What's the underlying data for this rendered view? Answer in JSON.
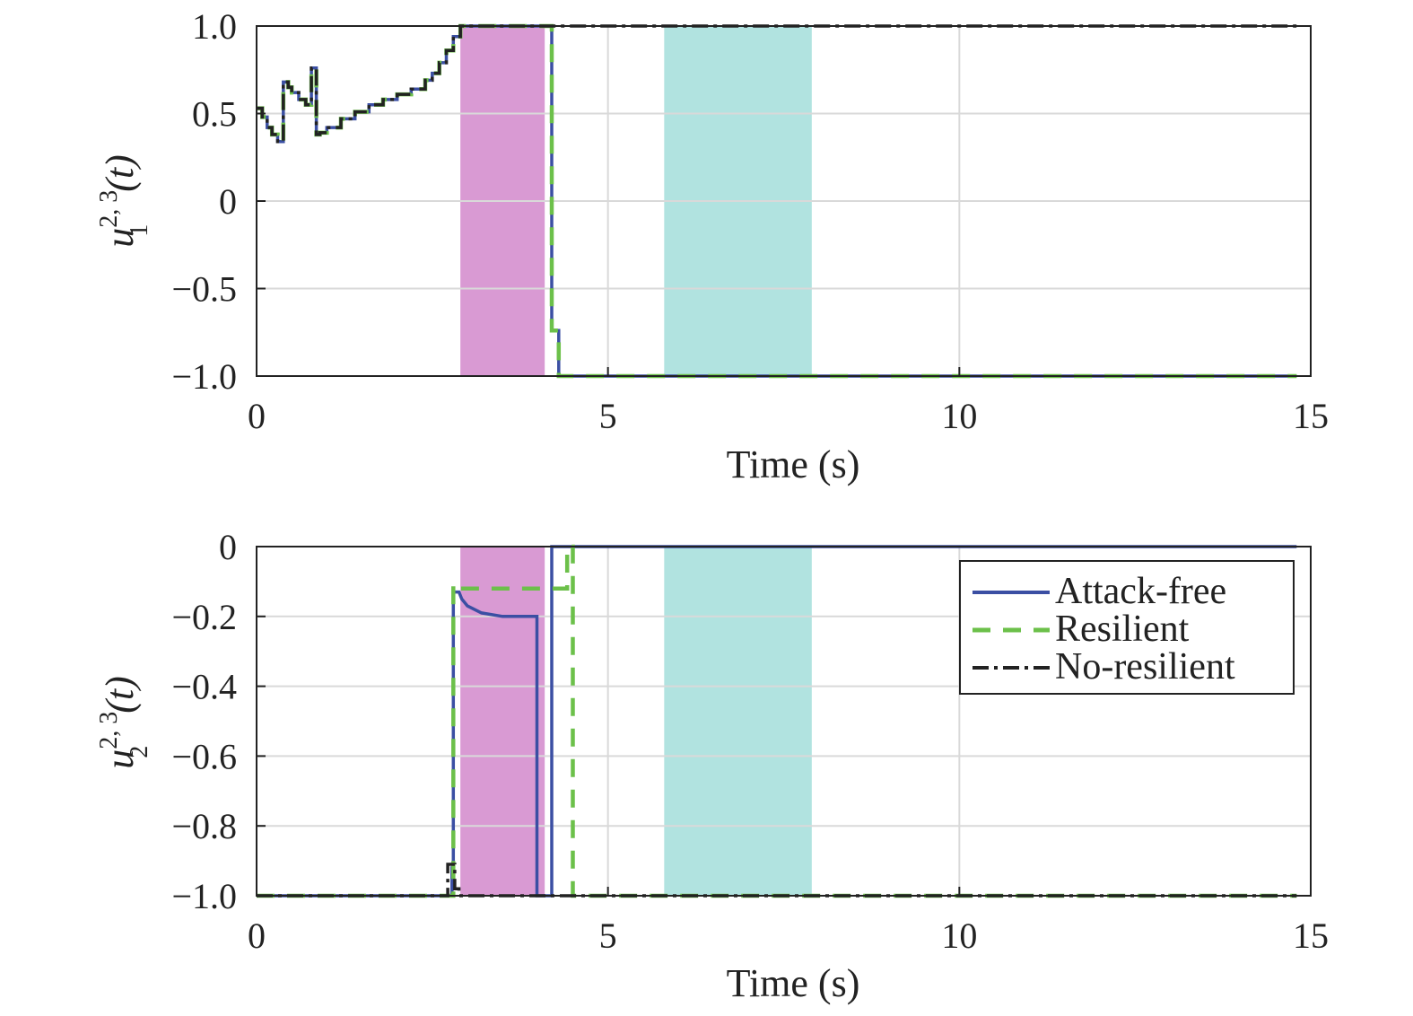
{
  "chart_data": [
    {
      "type": "line",
      "panel": "top",
      "ylabel": {
        "base": "u",
        "sup": "2, 3",
        "sub": "1",
        "suffix": "(t)"
      },
      "xlabel": "Time (s)",
      "xlim": [
        0,
        15
      ],
      "ylim": [
        -1.0,
        1.0
      ],
      "xticks": [
        0,
        5,
        10,
        15
      ],
      "xtick_labels": [
        "0",
        "5",
        "10",
        "15"
      ],
      "yticks": [
        -1.0,
        -0.5,
        0,
        0.5,
        1.0
      ],
      "ytick_labels": [
        "−1.0",
        "−0.5",
        "0",
        "0.5",
        "1.0"
      ],
      "grid": true,
      "shaded_regions": [
        {
          "x0": 2.9,
          "x1": 4.1,
          "color": "#d99ad3"
        },
        {
          "x0": 5.8,
          "x1": 7.9,
          "color": "#b1e3e0"
        }
      ],
      "series": [
        {
          "name": "Attack-free",
          "color": "#3b4fa3",
          "style": "solid",
          "step": true,
          "x": [
            0,
            0.08,
            0.15,
            0.22,
            0.3,
            0.38,
            0.45,
            0.5,
            0.6,
            0.7,
            0.78,
            0.85,
            0.9,
            1.0,
            1.2,
            1.4,
            1.6,
            1.8,
            2.0,
            2.2,
            2.4,
            2.5,
            2.6,
            2.7,
            2.8,
            2.9,
            3.5,
            4.1,
            4.2,
            4.3,
            14.8
          ],
          "y": [
            0.53,
            0.48,
            0.42,
            0.38,
            0.34,
            0.68,
            0.65,
            0.62,
            0.58,
            0.55,
            0.76,
            0.38,
            0.39,
            0.42,
            0.47,
            0.51,
            0.55,
            0.58,
            0.61,
            0.64,
            0.69,
            0.73,
            0.79,
            0.86,
            0.94,
            1.0,
            1.0,
            1.0,
            -0.74,
            -1.0,
            -1.0
          ]
        },
        {
          "name": "Resilient",
          "color": "#6cc04a",
          "style": "dashed",
          "step": true,
          "x": [
            0,
            0.08,
            0.15,
            0.22,
            0.3,
            0.38,
            0.45,
            0.5,
            0.6,
            0.7,
            0.78,
            0.85,
            0.9,
            1.0,
            1.2,
            1.4,
            1.6,
            1.8,
            2.0,
            2.2,
            2.4,
            2.5,
            2.6,
            2.7,
            2.8,
            2.9,
            3.5,
            4.1,
            4.2,
            4.3,
            14.8
          ],
          "y": [
            0.53,
            0.48,
            0.42,
            0.38,
            0.34,
            0.68,
            0.65,
            0.62,
            0.58,
            0.55,
            0.76,
            0.38,
            0.39,
            0.42,
            0.47,
            0.51,
            0.55,
            0.58,
            0.61,
            0.64,
            0.69,
            0.73,
            0.79,
            0.86,
            0.94,
            1.0,
            1.0,
            1.0,
            -0.74,
            -1.0,
            -1.0
          ]
        },
        {
          "name": "No-resilient",
          "color": "#222222",
          "style": "dashdot",
          "step": true,
          "x": [
            0,
            0.08,
            0.15,
            0.22,
            0.3,
            0.38,
            0.45,
            0.5,
            0.6,
            0.7,
            0.78,
            0.85,
            0.9,
            1.0,
            1.2,
            1.4,
            1.6,
            1.8,
            2.0,
            2.2,
            2.4,
            2.5,
            2.6,
            2.7,
            2.8,
            2.9,
            14.8
          ],
          "y": [
            0.53,
            0.48,
            0.42,
            0.38,
            0.34,
            0.68,
            0.65,
            0.62,
            0.58,
            0.55,
            0.76,
            0.38,
            0.39,
            0.42,
            0.47,
            0.51,
            0.55,
            0.58,
            0.61,
            0.64,
            0.69,
            0.73,
            0.79,
            0.86,
            0.94,
            1.0,
            1.0
          ]
        }
      ]
    },
    {
      "type": "line",
      "panel": "bottom",
      "ylabel": {
        "base": "u",
        "sup": "2, 3",
        "sub": "2",
        "suffix": "(t)"
      },
      "xlabel": "Time (s)",
      "xlim": [
        0,
        15
      ],
      "ylim": [
        -1.0,
        0
      ],
      "xticks": [
        0,
        5,
        10,
        15
      ],
      "xtick_labels": [
        "0",
        "5",
        "10",
        "15"
      ],
      "yticks": [
        -1.0,
        -0.8,
        -0.6,
        -0.4,
        -0.2,
        0
      ],
      "ytick_labels": [
        "−1.0",
        "−0.8",
        "−0.6",
        "−0.4",
        "−0.2",
        "0"
      ],
      "grid": true,
      "legend_position": "top-right",
      "shaded_regions": [
        {
          "x0": 2.9,
          "x1": 4.1,
          "color": "#d99ad3"
        },
        {
          "x0": 5.8,
          "x1": 7.9,
          "color": "#b1e3e0"
        }
      ],
      "series": [
        {
          "name": "Attack-free",
          "color": "#3b4fa3",
          "style": "solid",
          "step": false,
          "x": [
            0,
            2.78,
            2.78,
            2.8,
            2.8,
            2.88,
            2.92,
            3.0,
            3.2,
            3.5,
            3.8,
            3.99,
            3.99,
            4.2,
            4.2,
            14.8
          ],
          "y": [
            -1.0,
            -1.0,
            -0.92,
            -0.92,
            -0.13,
            -0.13,
            -0.15,
            -0.17,
            -0.19,
            -0.2,
            -0.2,
            -0.2,
            -1.0,
            -1.0,
            0,
            0
          ]
        },
        {
          "name": "Resilient",
          "color": "#6cc04a",
          "style": "dashed",
          "step": false,
          "x": [
            0,
            2.8,
            2.8,
            2.9,
            2.9,
            4.42,
            4.42,
            4.5,
            4.5,
            14.8
          ],
          "y": [
            -1.0,
            -1.0,
            -0.11,
            -0.11,
            -0.12,
            -0.12,
            0,
            0,
            -1.0,
            -1.0
          ]
        },
        {
          "name": "No-resilient",
          "color": "#222222",
          "style": "dashdot",
          "step": false,
          "x": [
            0,
            2.72,
            2.72,
            2.82,
            2.82,
            2.88,
            2.88,
            14.8
          ],
          "y": [
            -1.0,
            -1.0,
            -0.91,
            -0.91,
            -0.98,
            -0.98,
            -1.0,
            -1.0
          ]
        }
      ]
    }
  ]
}
